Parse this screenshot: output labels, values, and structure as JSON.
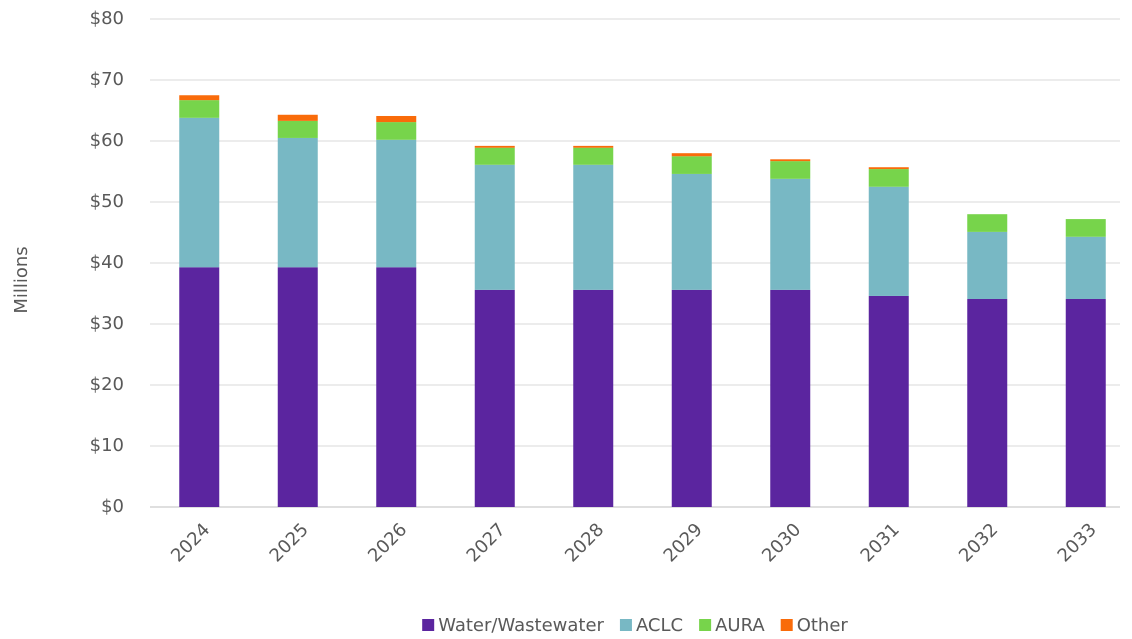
{
  "chart_data": {
    "type": "stacked_bar",
    "y_axis_label": "Millions",
    "categories": [
      "2024",
      "2025",
      "2026",
      "2027",
      "2028",
      "2029",
      "2030",
      "2031",
      "2032",
      "2033"
    ],
    "series": [
      {
        "name": "Water/Wastewater",
        "color": "#5b259f",
        "values": [
          39.3,
          39.3,
          39.3,
          35.6,
          35.6,
          35.6,
          35.6,
          34.6,
          34.1,
          34.1
        ]
      },
      {
        "name": "ACLC",
        "color": "#78b8c4",
        "values": [
          24.5,
          21.2,
          20.9,
          20.5,
          20.5,
          19.0,
          18.2,
          17.9,
          11.0,
          10.2
        ]
      },
      {
        "name": "AURA",
        "color": "#77d44b",
        "values": [
          2.9,
          2.8,
          2.9,
          2.8,
          2.8,
          2.9,
          2.9,
          2.9,
          2.9,
          2.9
        ]
      },
      {
        "name": "Other",
        "color": "#f96b0a",
        "values": [
          0.8,
          1.0,
          1.0,
          0.3,
          0.3,
          0.5,
          0.3,
          0.3,
          0,
          0
        ]
      }
    ],
    "ylim": [
      0,
      80
    ],
    "yticks": [
      {
        "value": 0,
        "label": "$0"
      },
      {
        "value": 10,
        "label": "$10"
      },
      {
        "value": 20,
        "label": "$20"
      },
      {
        "value": 30,
        "label": "$30"
      },
      {
        "value": 40,
        "label": "$40"
      },
      {
        "value": 50,
        "label": "$50"
      },
      {
        "value": 60,
        "label": "$60"
      },
      {
        "value": 70,
        "label": "$70"
      },
      {
        "value": 80,
        "label": "$80"
      }
    ],
    "grid": true,
    "legend": "bottom"
  }
}
